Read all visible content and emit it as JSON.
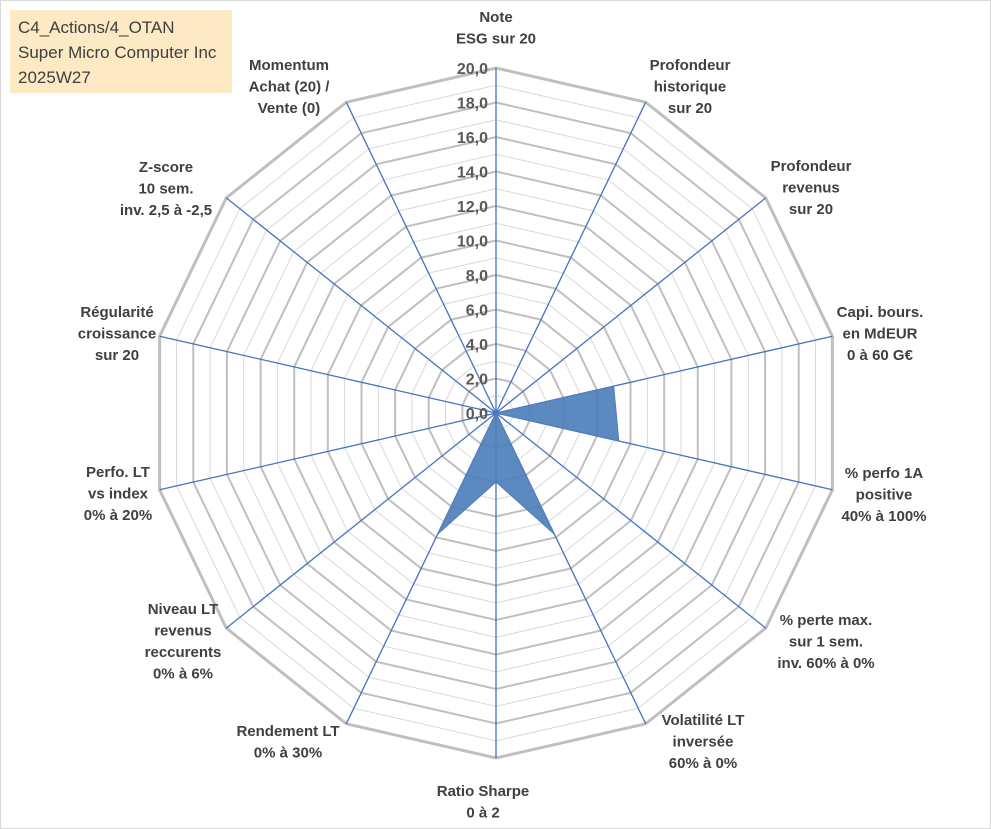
{
  "header": {
    "lines": [
      "C4_Actions/4_OTAN",
      "Super Micro Computer Inc",
      "2025W27"
    ]
  },
  "chart_data": {
    "type": "radar",
    "rlim": [
      0,
      20
    ],
    "tick_step": 2,
    "minor_step": 1,
    "tick_labels": [
      "0,0",
      "2,0",
      "4,0",
      "6,0",
      "8,0",
      "10,0",
      "12,0",
      "14,0",
      "16,0",
      "18,0",
      "20,0"
    ],
    "axes": [
      {
        "label": [
          "Note",
          "ESG sur 20"
        ]
      },
      {
        "label": [
          "Profondeur",
          "historique",
          "sur 20"
        ]
      },
      {
        "label": [
          "Profondeur",
          "revenus",
          "sur 20"
        ]
      },
      {
        "label": [
          "Capi. bours.",
          "en MdEUR",
          "0 à 60 G€"
        ]
      },
      {
        "label": [
          "% perfo 1A",
          "positive",
          "40% à 100%"
        ]
      },
      {
        "label": [
          "% perte max.",
          "sur 1 sem.",
          "inv. 60% à 0%"
        ]
      },
      {
        "label": [
          "Volatilité LT",
          "inversée",
          "60% à 0%"
        ]
      },
      {
        "label": [
          "Ratio Sharpe",
          "0 à 2"
        ]
      },
      {
        "label": [
          "Rendement LT",
          "0% à 30%"
        ]
      },
      {
        "label": [
          "Niveau LT",
          "revenus",
          "reccurents",
          "0% à 6%"
        ]
      },
      {
        "label": [
          "Perfo. LT",
          "vs index",
          "0% à 20%"
        ]
      },
      {
        "label": [
          "Régularité",
          "croissance",
          "sur 20"
        ]
      },
      {
        "label": [
          "Z-score",
          "10 sem.",
          "inv. 2,5 à -2,5"
        ]
      },
      {
        "label": [
          "Momentum",
          "Achat (20) /",
          "Vente (0)"
        ]
      }
    ],
    "series": [
      {
        "values": [
          0,
          0,
          0,
          7.0,
          7.3,
          0,
          7.8,
          4.0,
          7.8,
          0,
          0,
          0,
          0,
          4.4
        ]
      }
    ],
    "colors": {
      "fill": "#4f7fbc",
      "axis": "#4472c4",
      "ring": "#bfbfbf",
      "minor": "#d9d9d9"
    }
  }
}
